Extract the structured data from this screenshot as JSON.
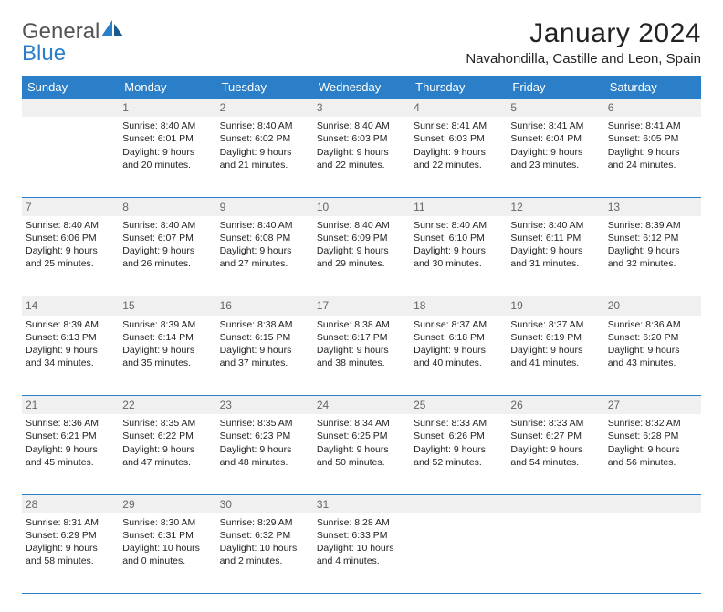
{
  "logo": {
    "text1": "General",
    "text2": "Blue"
  },
  "title": "January 2024",
  "location": "Navahondilla, Castille and Leon, Spain",
  "colors": {
    "header_bg": "#2a7fc8",
    "header_text": "#ffffff",
    "border": "#2a7fc8",
    "daynum_bg": "#f0f0f0",
    "text": "#222222",
    "logo_gray": "#555555",
    "logo_blue": "#2a7fc8"
  },
  "weekdays": [
    "Sunday",
    "Monday",
    "Tuesday",
    "Wednesday",
    "Thursday",
    "Friday",
    "Saturday"
  ],
  "weeks": [
    [
      null,
      {
        "n": "1",
        "sr": "Sunrise: 8:40 AM",
        "ss": "Sunset: 6:01 PM",
        "dl": "Daylight: 9 hours and 20 minutes."
      },
      {
        "n": "2",
        "sr": "Sunrise: 8:40 AM",
        "ss": "Sunset: 6:02 PM",
        "dl": "Daylight: 9 hours and 21 minutes."
      },
      {
        "n": "3",
        "sr": "Sunrise: 8:40 AM",
        "ss": "Sunset: 6:03 PM",
        "dl": "Daylight: 9 hours and 22 minutes."
      },
      {
        "n": "4",
        "sr": "Sunrise: 8:41 AM",
        "ss": "Sunset: 6:03 PM",
        "dl": "Daylight: 9 hours and 22 minutes."
      },
      {
        "n": "5",
        "sr": "Sunrise: 8:41 AM",
        "ss": "Sunset: 6:04 PM",
        "dl": "Daylight: 9 hours and 23 minutes."
      },
      {
        "n": "6",
        "sr": "Sunrise: 8:41 AM",
        "ss": "Sunset: 6:05 PM",
        "dl": "Daylight: 9 hours and 24 minutes."
      }
    ],
    [
      {
        "n": "7",
        "sr": "Sunrise: 8:40 AM",
        "ss": "Sunset: 6:06 PM",
        "dl": "Daylight: 9 hours and 25 minutes."
      },
      {
        "n": "8",
        "sr": "Sunrise: 8:40 AM",
        "ss": "Sunset: 6:07 PM",
        "dl": "Daylight: 9 hours and 26 minutes."
      },
      {
        "n": "9",
        "sr": "Sunrise: 8:40 AM",
        "ss": "Sunset: 6:08 PM",
        "dl": "Daylight: 9 hours and 27 minutes."
      },
      {
        "n": "10",
        "sr": "Sunrise: 8:40 AM",
        "ss": "Sunset: 6:09 PM",
        "dl": "Daylight: 9 hours and 29 minutes."
      },
      {
        "n": "11",
        "sr": "Sunrise: 8:40 AM",
        "ss": "Sunset: 6:10 PM",
        "dl": "Daylight: 9 hours and 30 minutes."
      },
      {
        "n": "12",
        "sr": "Sunrise: 8:40 AM",
        "ss": "Sunset: 6:11 PM",
        "dl": "Daylight: 9 hours and 31 minutes."
      },
      {
        "n": "13",
        "sr": "Sunrise: 8:39 AM",
        "ss": "Sunset: 6:12 PM",
        "dl": "Daylight: 9 hours and 32 minutes."
      }
    ],
    [
      {
        "n": "14",
        "sr": "Sunrise: 8:39 AM",
        "ss": "Sunset: 6:13 PM",
        "dl": "Daylight: 9 hours and 34 minutes."
      },
      {
        "n": "15",
        "sr": "Sunrise: 8:39 AM",
        "ss": "Sunset: 6:14 PM",
        "dl": "Daylight: 9 hours and 35 minutes."
      },
      {
        "n": "16",
        "sr": "Sunrise: 8:38 AM",
        "ss": "Sunset: 6:15 PM",
        "dl": "Daylight: 9 hours and 37 minutes."
      },
      {
        "n": "17",
        "sr": "Sunrise: 8:38 AM",
        "ss": "Sunset: 6:17 PM",
        "dl": "Daylight: 9 hours and 38 minutes."
      },
      {
        "n": "18",
        "sr": "Sunrise: 8:37 AM",
        "ss": "Sunset: 6:18 PM",
        "dl": "Daylight: 9 hours and 40 minutes."
      },
      {
        "n": "19",
        "sr": "Sunrise: 8:37 AM",
        "ss": "Sunset: 6:19 PM",
        "dl": "Daylight: 9 hours and 41 minutes."
      },
      {
        "n": "20",
        "sr": "Sunrise: 8:36 AM",
        "ss": "Sunset: 6:20 PM",
        "dl": "Daylight: 9 hours and 43 minutes."
      }
    ],
    [
      {
        "n": "21",
        "sr": "Sunrise: 8:36 AM",
        "ss": "Sunset: 6:21 PM",
        "dl": "Daylight: 9 hours and 45 minutes."
      },
      {
        "n": "22",
        "sr": "Sunrise: 8:35 AM",
        "ss": "Sunset: 6:22 PM",
        "dl": "Daylight: 9 hours and 47 minutes."
      },
      {
        "n": "23",
        "sr": "Sunrise: 8:35 AM",
        "ss": "Sunset: 6:23 PM",
        "dl": "Daylight: 9 hours and 48 minutes."
      },
      {
        "n": "24",
        "sr": "Sunrise: 8:34 AM",
        "ss": "Sunset: 6:25 PM",
        "dl": "Daylight: 9 hours and 50 minutes."
      },
      {
        "n": "25",
        "sr": "Sunrise: 8:33 AM",
        "ss": "Sunset: 6:26 PM",
        "dl": "Daylight: 9 hours and 52 minutes."
      },
      {
        "n": "26",
        "sr": "Sunrise: 8:33 AM",
        "ss": "Sunset: 6:27 PM",
        "dl": "Daylight: 9 hours and 54 minutes."
      },
      {
        "n": "27",
        "sr": "Sunrise: 8:32 AM",
        "ss": "Sunset: 6:28 PM",
        "dl": "Daylight: 9 hours and 56 minutes."
      }
    ],
    [
      {
        "n": "28",
        "sr": "Sunrise: 8:31 AM",
        "ss": "Sunset: 6:29 PM",
        "dl": "Daylight: 9 hours and 58 minutes."
      },
      {
        "n": "29",
        "sr": "Sunrise: 8:30 AM",
        "ss": "Sunset: 6:31 PM",
        "dl": "Daylight: 10 hours and 0 minutes."
      },
      {
        "n": "30",
        "sr": "Sunrise: 8:29 AM",
        "ss": "Sunset: 6:32 PM",
        "dl": "Daylight: 10 hours and 2 minutes."
      },
      {
        "n": "31",
        "sr": "Sunrise: 8:28 AM",
        "ss": "Sunset: 6:33 PM",
        "dl": "Daylight: 10 hours and 4 minutes."
      },
      null,
      null,
      null
    ]
  ]
}
